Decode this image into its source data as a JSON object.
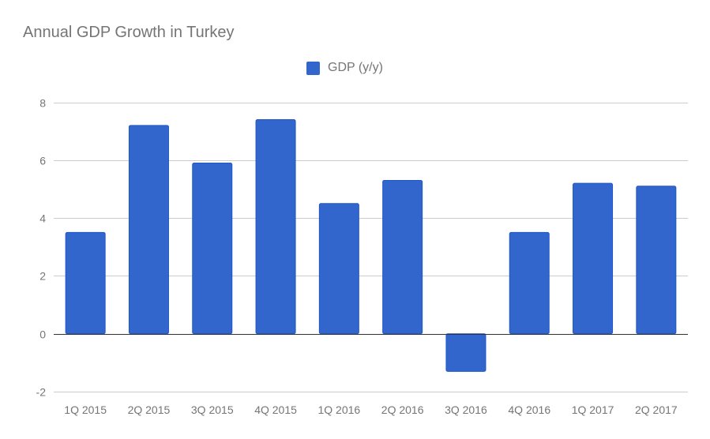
{
  "chart": {
    "title": "Annual GDP Growth in Turkey",
    "legend_label": "GDP (y/y)",
    "bar_color": "#3366cc",
    "bar_border": "#1e56c8",
    "gridline_color": "#cccccc",
    "zero_line_color": "#333333"
  },
  "chart_data": {
    "type": "bar",
    "title": "Annual GDP Growth in Turkey",
    "xlabel": "",
    "ylabel": "",
    "categories": [
      "1Q 2015",
      "2Q 2015",
      "3Q 2015",
      "4Q 2015",
      "1Q 2016",
      "2Q 2016",
      "3Q 2016",
      "4Q 2016",
      "1Q 2017",
      "2Q 2017"
    ],
    "series": [
      {
        "name": "GDP (y/y)",
        "values": [
          3.5,
          7.2,
          5.9,
          7.4,
          4.5,
          5.3,
          -1.3,
          3.5,
          5.2,
          5.1
        ]
      }
    ],
    "ylim": [
      -2,
      8
    ],
    "yticks": [
      8,
      6,
      4,
      2,
      0,
      -2
    ],
    "grid": true,
    "legend_position": "top"
  }
}
